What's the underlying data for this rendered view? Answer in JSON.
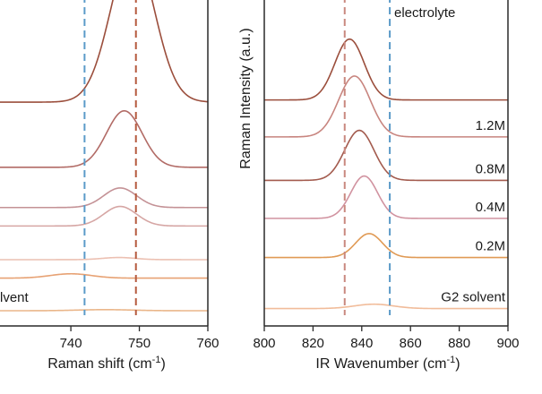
{
  "chart_data": [
    {
      "type": "line",
      "panel": "left",
      "title": "",
      "xlabel": "Raman shift (cm",
      "xlabel_sup": "-1",
      "xlabel_close": ")",
      "ylabel": "",
      "xlim": [
        729,
        760
      ],
      "x_ticks": [
        740,
        750,
        760
      ],
      "x_tick_labels": [
        "740",
        "750",
        "760"
      ],
      "reference_lines": [
        {
          "x": 742,
          "color": "#5b9bc8"
        },
        {
          "x": 749.5,
          "color": "#b55a3e"
        }
      ],
      "series": [
        {
          "name": "top",
          "label": "",
          "baseline": 10.3,
          "peak_x": 749,
          "amplitude": 7.0,
          "sigma": 3.2,
          "color": "#9b4e3c"
        },
        {
          "name": "s2",
          "label": "",
          "baseline": 7.3,
          "peak_x": 747.8,
          "amplitude": 2.6,
          "sigma": 2.6,
          "color": "#b26b66"
        },
        {
          "name": "s3",
          "label": "",
          "baseline": 5.45,
          "peak_x": 747.2,
          "amplitude": 0.9,
          "sigma": 2.4,
          "color": "#c49296"
        },
        {
          "name": "s4",
          "label": "",
          "baseline": 4.6,
          "peak_x": 747.2,
          "amplitude": 0.9,
          "sigma": 2.4,
          "color": "#d6a6a4"
        },
        {
          "name": "s5",
          "label": "",
          "baseline": 3.05,
          "peak_x": 747,
          "amplitude": 0.1,
          "sigma": 2.4,
          "color": "#ecc0b2"
        },
        {
          "name": "s6",
          "label": "",
          "baseline": 2.2,
          "peak_x": 740,
          "amplitude": 0.2,
          "sigma": 3.0,
          "color": "#e7a274"
        },
        {
          "name": "solvent",
          "label": "lvent",
          "baseline": 0.7,
          "peak_x": 745,
          "amplitude": 0.05,
          "sigma": 4.0,
          "color": "#eab68a"
        }
      ]
    },
    {
      "type": "line",
      "panel": "right",
      "title": "",
      "xlabel": "IR Wavenumber (cm",
      "xlabel_sup": "-1",
      "xlabel_close": ")",
      "ylabel": "Raman Intensity (a.u.)",
      "xlim": [
        800,
        900
      ],
      "x_ticks": [
        800,
        820,
        840,
        860,
        880,
        900
      ],
      "x_tick_labels": [
        "800",
        "820",
        "840",
        "860",
        "880",
        "900"
      ],
      "reference_lines": [
        {
          "x": 833,
          "color": "#c9897f"
        },
        {
          "x": 851.5,
          "color": "#5b9bc8"
        }
      ],
      "annotation": "electrolyte",
      "series": [
        {
          "name": "electrolyte",
          "label": "",
          "baseline": 10.4,
          "peak_x": 835,
          "amplitude": 2.8,
          "sigma": 6.0,
          "color": "#9b4e3c"
        },
        {
          "name": "1.2M",
          "label": "1.2M",
          "baseline": 8.7,
          "peak_x": 837,
          "amplitude": 2.8,
          "sigma": 6.5,
          "color": "#c8857f"
        },
        {
          "name": "0.8M",
          "label": "0.8M",
          "baseline": 6.7,
          "peak_x": 839,
          "amplitude": 2.3,
          "sigma": 6.0,
          "color": "#a35b4e"
        },
        {
          "name": "0.4M",
          "label": "0.4M",
          "baseline": 4.95,
          "peak_x": 841,
          "amplitude": 1.95,
          "sigma": 5.5,
          "color": "#d193a0"
        },
        {
          "name": "0.2M",
          "label": "0.2M",
          "baseline": 3.15,
          "peak_x": 843,
          "amplitude": 1.1,
          "sigma": 5.5,
          "color": "#e09a55"
        },
        {
          "name": "G2 solvent",
          "label": "G2 solvent",
          "baseline": 0.8,
          "peak_x": 845,
          "amplitude": 0.2,
          "sigma": 8.0,
          "color": "#f1bc9a"
        }
      ]
    }
  ]
}
